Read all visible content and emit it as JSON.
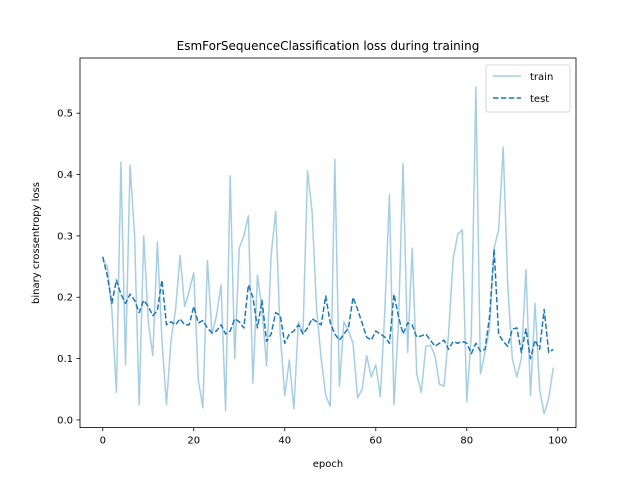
{
  "chart_data": {
    "type": "line",
    "title": "EsmForSequenceClassification loss during training",
    "xlabel": "epoch",
    "ylabel": "binary crossentropy loss",
    "xlim": [
      -5,
      104
    ],
    "ylim": [
      -0.0125,
      0.59
    ],
    "xticks": [
      0,
      20,
      40,
      60,
      80,
      100
    ],
    "yticks": [
      0.0,
      0.1,
      0.2,
      0.3,
      0.4,
      0.5
    ],
    "xtick_labels": [
      "0",
      "20",
      "40",
      "60",
      "80",
      "100"
    ],
    "ytick_labels": [
      "0.0",
      "0.1",
      "0.2",
      "0.3",
      "0.4",
      "0.5"
    ],
    "grid": false,
    "legend": "top-right",
    "series": [
      {
        "name": "train",
        "color": "#a6cee3",
        "style": "solid",
        "x": [
          0,
          1,
          2,
          3,
          4,
          5,
          6,
          7,
          8,
          9,
          10,
          11,
          12,
          13,
          14,
          15,
          16,
          17,
          18,
          19,
          20,
          21,
          22,
          23,
          24,
          25,
          26,
          27,
          28,
          29,
          30,
          31,
          32,
          33,
          34,
          35,
          36,
          37,
          38,
          39,
          40,
          41,
          42,
          43,
          44,
          45,
          46,
          47,
          48,
          49,
          50,
          51,
          52,
          53,
          54,
          55,
          56,
          57,
          58,
          59,
          60,
          61,
          62,
          63,
          64,
          65,
          66,
          67,
          68,
          69,
          70,
          71,
          72,
          73,
          74,
          75,
          76,
          77,
          78,
          79,
          80,
          81,
          82,
          83,
          84,
          85,
          86,
          87,
          88,
          89,
          90,
          91,
          92,
          93,
          94,
          95,
          96,
          97,
          98,
          99
        ],
        "values": [
          0.26,
          0.25,
          0.18,
          0.045,
          0.42,
          0.09,
          0.415,
          0.3,
          0.025,
          0.3,
          0.16,
          0.105,
          0.29,
          0.13,
          0.025,
          0.13,
          0.18,
          0.268,
          0.185,
          0.21,
          0.24,
          0.065,
          0.02,
          0.26,
          0.14,
          0.17,
          0.22,
          0.015,
          0.398,
          0.1,
          0.28,
          0.3,
          0.333,
          0.06,
          0.236,
          0.18,
          0.088,
          0.268,
          0.34,
          0.14,
          0.04,
          0.098,
          0.018,
          0.16,
          0.14,
          0.406,
          0.34,
          0.18,
          0.1,
          0.04,
          0.022,
          0.425,
          0.055,
          0.16,
          0.145,
          0.125,
          0.036,
          0.05,
          0.105,
          0.07,
          0.09,
          0.038,
          0.18,
          0.367,
          0.025,
          0.16,
          0.418,
          0.11,
          0.28,
          0.075,
          0.045,
          0.12,
          0.122,
          0.105,
          0.058,
          0.055,
          0.14,
          0.262,
          0.302,
          0.31,
          0.03,
          0.14,
          0.543,
          0.075,
          0.11,
          0.15,
          0.28,
          0.31,
          0.444,
          0.22,
          0.1,
          0.07,
          0.1,
          0.245,
          0.04,
          0.19,
          0.05,
          0.01,
          0.035,
          0.085
        ]
      },
      {
        "name": "test",
        "color": "#1f78b4",
        "style": "dashed",
        "x": [
          0,
          1,
          2,
          3,
          4,
          5,
          6,
          7,
          8,
          9,
          10,
          11,
          12,
          13,
          14,
          15,
          16,
          17,
          18,
          19,
          20,
          21,
          22,
          23,
          24,
          25,
          26,
          27,
          28,
          29,
          30,
          31,
          32,
          33,
          34,
          35,
          36,
          37,
          38,
          39,
          40,
          41,
          42,
          43,
          44,
          45,
          46,
          47,
          48,
          49,
          50,
          51,
          52,
          53,
          54,
          55,
          56,
          57,
          58,
          59,
          60,
          61,
          62,
          63,
          64,
          65,
          66,
          67,
          68,
          69,
          70,
          71,
          72,
          73,
          74,
          75,
          76,
          77,
          78,
          79,
          80,
          81,
          82,
          83,
          84,
          85,
          86,
          87,
          88,
          89,
          90,
          91,
          92,
          93,
          94,
          95,
          96,
          97,
          98,
          99
        ],
        "values": [
          0.266,
          0.235,
          0.19,
          0.228,
          0.205,
          0.19,
          0.205,
          0.195,
          0.175,
          0.195,
          0.185,
          0.17,
          0.178,
          0.228,
          0.155,
          0.16,
          0.155,
          0.165,
          0.155,
          0.155,
          0.185,
          0.158,
          0.162,
          0.15,
          0.142,
          0.145,
          0.155,
          0.14,
          0.145,
          0.165,
          0.16,
          0.15,
          0.22,
          0.2,
          0.15,
          0.195,
          0.128,
          0.14,
          0.175,
          0.17,
          0.125,
          0.14,
          0.145,
          0.155,
          0.14,
          0.15,
          0.165,
          0.16,
          0.155,
          0.202,
          0.158,
          0.14,
          0.13,
          0.14,
          0.15,
          0.2,
          0.18,
          0.158,
          0.135,
          0.13,
          0.145,
          0.14,
          0.135,
          0.125,
          0.205,
          0.168,
          0.14,
          0.158,
          0.155,
          0.135,
          0.137,
          0.14,
          0.13,
          0.12,
          0.125,
          0.13,
          0.115,
          0.128,
          0.125,
          0.128,
          0.125,
          0.108,
          0.125,
          0.112,
          0.115,
          0.168,
          0.278,
          0.14,
          0.128,
          0.12,
          0.148,
          0.15,
          0.11,
          0.148,
          0.1,
          0.13,
          0.115,
          0.18,
          0.11,
          0.115
        ]
      }
    ]
  }
}
